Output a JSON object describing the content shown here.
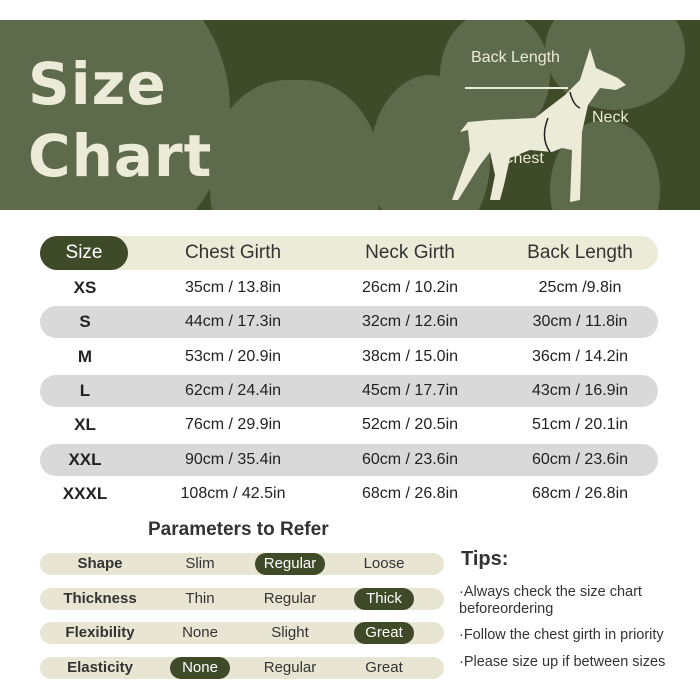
{
  "banner": {
    "title_line1": "Size",
    "title_line2": "Chart",
    "labels": {
      "back": "Back Length",
      "neck": "Neck",
      "chest": "Chest"
    },
    "colors": {
      "dark": "#3e4a28",
      "blob": "#5e6a4c",
      "cream": "#ecebd8"
    }
  },
  "table": {
    "headers": [
      "Size",
      "Chest Girth",
      "Neck Girth",
      "Back Length"
    ],
    "rows": [
      {
        "size": "XS",
        "chest": "35cm / 13.8in",
        "neck": "26cm / 10.2in",
        "back": "25cm /9.8in"
      },
      {
        "size": "S",
        "chest": "44cm / 17.3in",
        "neck": "32cm / 12.6in",
        "back": "30cm / 11.8in"
      },
      {
        "size": "M",
        "chest": "53cm / 20.9in",
        "neck": "38cm / 15.0in",
        "back": "36cm / 14.2in"
      },
      {
        "size": "L",
        "chest": "62cm / 24.4in",
        "neck": "45cm / 17.7in",
        "back": "43cm / 16.9in"
      },
      {
        "size": "XL",
        "chest": "76cm / 29.9in",
        "neck": "52cm / 20.5in",
        "back": "51cm / 20.1in"
      },
      {
        "size": "XXL",
        "chest": "90cm / 35.4in",
        "neck": "60cm / 23.6in",
        "back": "60cm / 23.6in"
      },
      {
        "size": "XXXL",
        "chest": "108cm / 42.5in",
        "neck": "68cm / 26.8in",
        "back": "68cm / 26.8in"
      }
    ]
  },
  "parameters": {
    "title": "Parameters to Refer",
    "rows": [
      {
        "label": "Shape",
        "options": [
          "Slim",
          "Regular",
          "Loose"
        ],
        "selected": 1
      },
      {
        "label": "Thickness",
        "options": [
          "Thin",
          "Regular",
          "Thick"
        ],
        "selected": 2
      },
      {
        "label": "Flexibility",
        "options": [
          "None",
          "Slight",
          "Great"
        ],
        "selected": 2
      },
      {
        "label": "Elasticity",
        "options": [
          "None",
          "Regular",
          "Great"
        ],
        "selected": 0
      }
    ]
  },
  "tips": {
    "title": "Tips:",
    "items": [
      "·Always check the size chart beforeordering",
      "·Follow the chest girth in priority",
      "·Please size up if between sizes"
    ]
  }
}
